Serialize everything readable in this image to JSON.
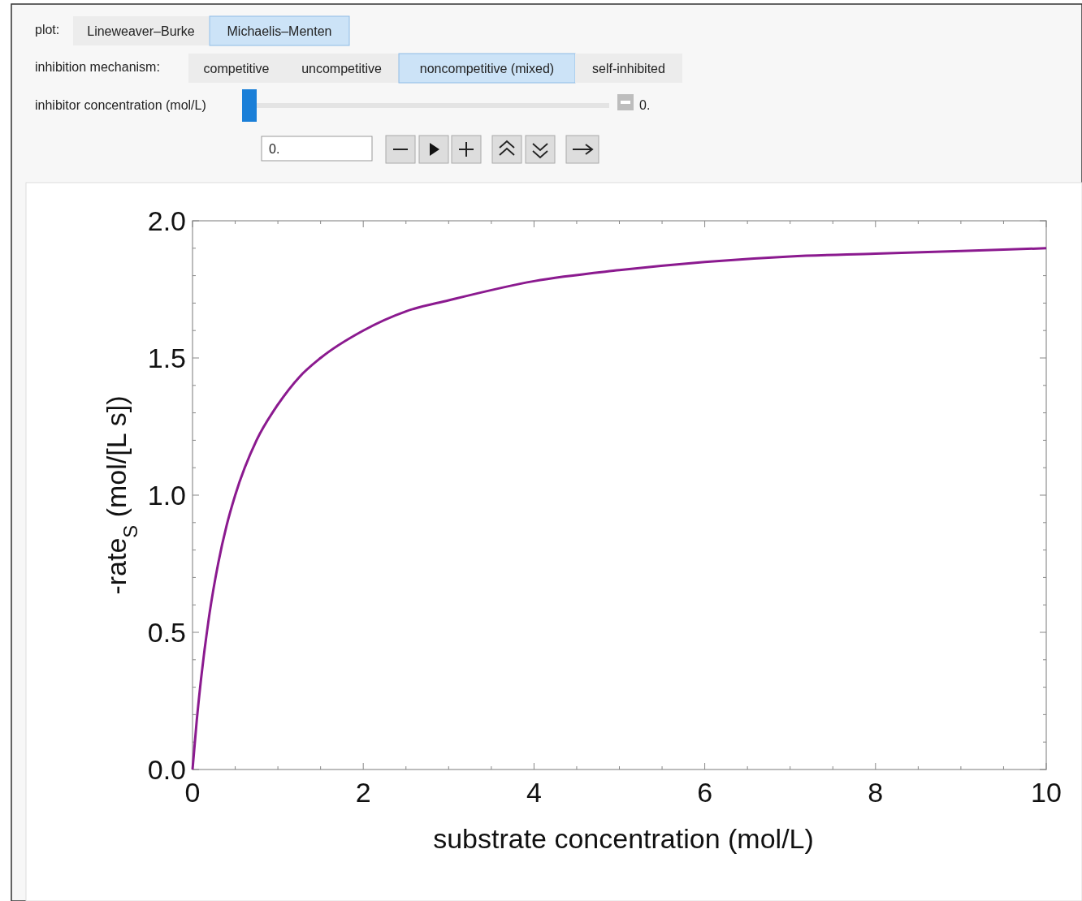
{
  "chart_data": {
    "type": "line",
    "xlabel": "substrate concentration (mol/L)",
    "ylabel": "-rate$_{S}$ (mol/[L s])",
    "x": [
      0,
      0.05,
      0.1,
      0.2,
      0.3,
      0.4,
      0.5,
      0.75,
      1,
      1.25,
      1.5,
      2,
      2.5,
      3,
      4,
      5,
      6,
      7,
      8,
      9,
      10
    ],
    "series": [
      {
        "color": "#8b1a8f",
        "values": [
          0,
          0.18,
          0.33,
          0.57,
          0.75,
          0.89,
          1.0,
          1.2,
          1.33,
          1.43,
          1.5,
          1.6,
          1.67,
          1.71,
          1.78,
          1.82,
          1.85,
          1.87,
          1.88,
          1.89,
          1.9
        ]
      }
    ],
    "xlim": [
      0,
      10
    ],
    "ylim": [
      0,
      2
    ],
    "xticks": [
      0,
      {
        "value": 0.5,
        "label": null
      },
      {
        "value": 1,
        "label": null
      },
      {
        "value": 1.5,
        "label": null
      },
      2,
      {
        "value": 2.5,
        "label": null
      },
      {
        "value": 3,
        "label": null
      },
      {
        "value": 3.5,
        "label": null
      },
      4,
      {
        "value": 4.5,
        "label": null
      },
      {
        "value": 5,
        "label": null
      },
      {
        "value": 5.5,
        "label": null
      },
      6,
      {
        "value": 6.5,
        "label": null
      },
      {
        "value": 7,
        "label": null
      },
      {
        "value": 7.5,
        "label": null
      },
      8,
      {
        "value": 8.5,
        "label": null
      },
      {
        "value": 9,
        "label": null
      },
      {
        "value": 9.5,
        "label": null
      },
      10
    ],
    "yticks": [
      {
        "value": 0,
        "label": "0.0"
      },
      {
        "value": 0.1,
        "label": null
      },
      {
        "value": 0.2,
        "label": null
      },
      {
        "value": 0.3,
        "label": null
      },
      {
        "value": 0.4,
        "label": null
      },
      {
        "value": 0.5,
        "label": "0.5"
      },
      {
        "value": 0.6,
        "label": null
      },
      {
        "value": 0.7,
        "label": null
      },
      {
        "value": 0.8,
        "label": null
      },
      {
        "value": 0.9,
        "label": null
      },
      {
        "value": 1,
        "label": "1.0"
      },
      {
        "value": 1.1,
        "label": null
      },
      {
        "value": 1.2,
        "label": null
      },
      {
        "value": 1.3,
        "label": null
      },
      {
        "value": 1.4,
        "label": null
      },
      {
        "value": 1.5,
        "label": "1.5"
      },
      {
        "value": 1.6,
        "label": null
      },
      {
        "value": 1.7,
        "label": null
      },
      {
        "value": 1.8,
        "label": null
      },
      {
        "value": 1.9,
        "label": null
      },
      {
        "value": 2,
        "label": "2.0"
      }
    ],
    "annotations": [
      "plot:",
      "Lineweaver–Burke",
      "Michaelis–Menten",
      "inhibition mechanism:",
      "competitive",
      "uncompetitive",
      "noncompetitive (mixed)",
      "self-inhibited",
      "inhibitor concentration (mol/L)",
      "0.",
      "0."
    ]
  }
}
